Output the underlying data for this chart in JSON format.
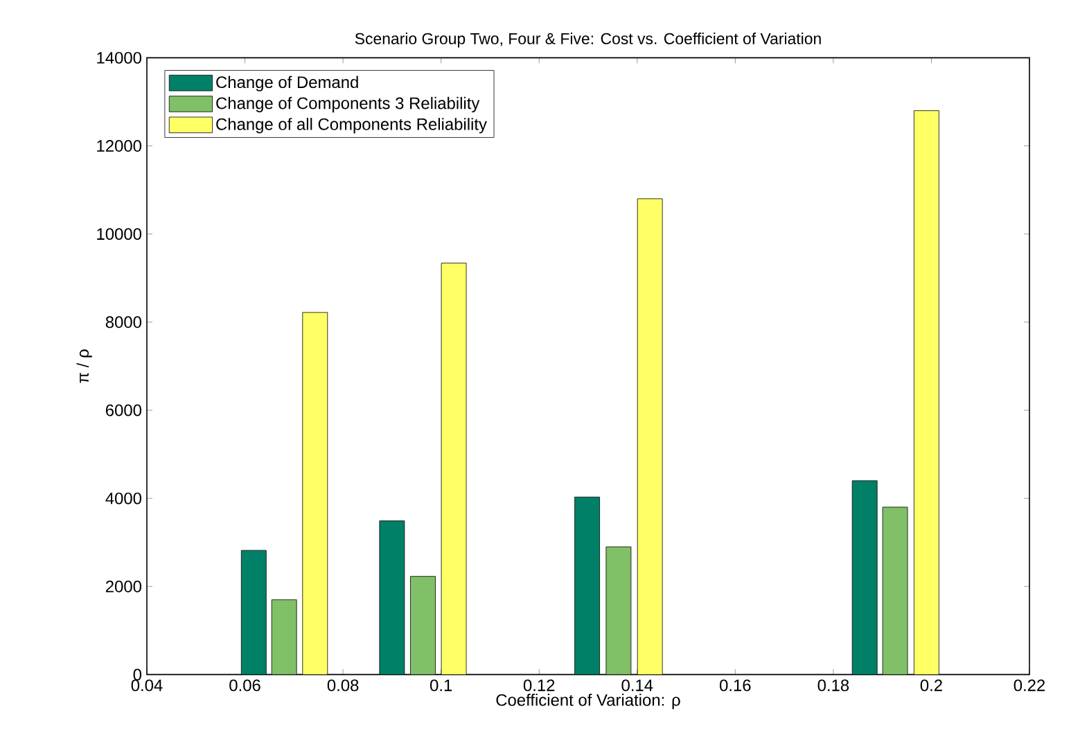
{
  "chart_data": {
    "type": "bar",
    "title": "Scenario Group Two, Four & Five:  Cost vs. Coefficient of Variation",
    "xlabel": "Coefficient of Variation: ρ",
    "ylabel": "π / ρ",
    "series": [
      {
        "name": "Change of Demand",
        "color": "#008066",
        "x": [
          0.0618,
          0.09,
          0.1298,
          0.1864
        ],
        "values": [
          2820,
          3490,
          4030,
          4400
        ]
      },
      {
        "name": "Change of Components 3 Reliability",
        "color": "#80c066",
        "x": [
          0.068,
          0.0963,
          0.1362,
          0.1926
        ],
        "values": [
          1700,
          2230,
          2900,
          3800
        ]
      },
      {
        "name": "Change of all Components Reliability",
        "color": "#ffff66",
        "x": [
          0.0743,
          0.1026,
          0.1426,
          0.199
        ],
        "values": [
          8220,
          9340,
          10800,
          12800
        ]
      }
    ],
    "xlim": [
      0.04,
      0.22
    ],
    "xticks": [
      0.04,
      0.06,
      0.08,
      0.1,
      0.12,
      0.14,
      0.16,
      0.18,
      0.2,
      0.22
    ],
    "ylim": [
      0,
      14000
    ],
    "yticks": [
      0,
      2000,
      4000,
      6000,
      8000,
      10000,
      12000,
      14000
    ],
    "legend": "top left",
    "grid": false
  }
}
